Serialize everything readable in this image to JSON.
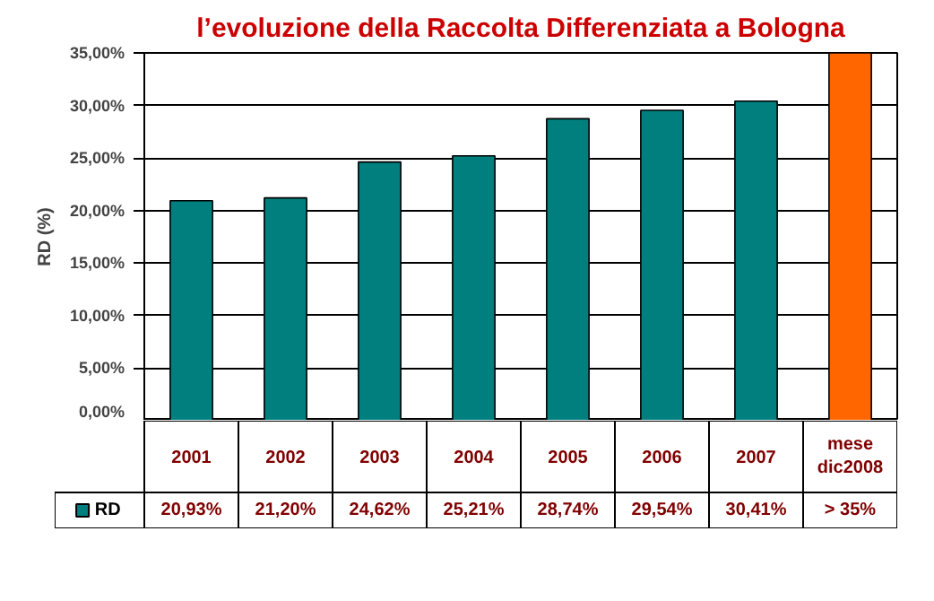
{
  "chart_data": {
    "type": "bar",
    "title": "l’evoluzione della Raccolta Differenziata a Bologna",
    "ylabel": "RD (%)",
    "categories": [
      "2001",
      "2002",
      "2003",
      "2004",
      "2005",
      "2006",
      "2007",
      "mese dic2008"
    ],
    "series": [
      {
        "name": "RD",
        "color": "#007f7f",
        "colors": [
          "#007f7f",
          "#007f7f",
          "#007f7f",
          "#007f7f",
          "#007f7f",
          "#007f7f",
          "#007f7f",
          "#ff6600"
        ],
        "values": [
          20.93,
          21.2,
          24.62,
          25.21,
          28.74,
          29.54,
          30.41,
          35
        ],
        "value_labels": [
          "20,93%",
          "21,20%",
          "24,62%",
          "25,21%",
          "28,74%",
          "29,54%",
          "30,41%",
          "> 35%"
        ]
      }
    ],
    "ylim": [
      0,
      35
    ],
    "yticks": [
      {
        "value": 0,
        "label": "0,00%"
      },
      {
        "value": 5,
        "label": "5,00%"
      },
      {
        "value": 10,
        "label": "10,00%"
      },
      {
        "value": 15,
        "label": "15,00%"
      },
      {
        "value": 20,
        "label": "20,00%"
      },
      {
        "value": 25,
        "label": "25,00%"
      },
      {
        "value": 30,
        "label": "30,00%"
      },
      {
        "value": 35,
        "label": "35,00%"
      }
    ],
    "grid": "y",
    "legend": "bottom"
  }
}
